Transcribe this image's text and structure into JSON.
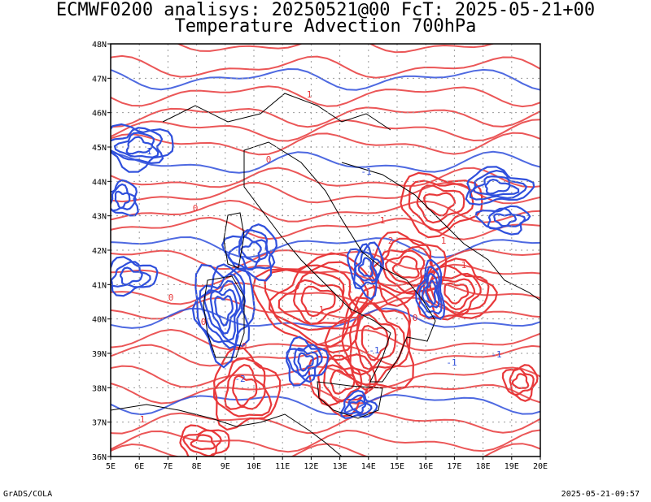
{
  "title_line1": "ECMWF0200 analisys: 20250521@00 FcT: 2025-05-21+00",
  "title_line2": "Temperature Advection 700hPa",
  "footer_left": "GrADS/COLA",
  "footer_right": "2025-05-21-09:57",
  "lat_labels": [
    "48N",
    "47N",
    "46N",
    "45N",
    "44N",
    "43N",
    "42N",
    "41N",
    "40N",
    "39N",
    "38N",
    "37N",
    "36N"
  ],
  "lon_labels": [
    "5E",
    "6E",
    "7E",
    "8E",
    "9E",
    "10E",
    "11E",
    "12E",
    "13E",
    "14E",
    "15E",
    "16E",
    "17E",
    "18E",
    "19E",
    "20E"
  ],
  "contour_labels": [
    "0",
    "1",
    "1",
    "-1",
    "0",
    "-1",
    "0",
    "1",
    "2",
    "-2",
    "1",
    "0",
    "-1",
    "1",
    "0",
    "1",
    "-1",
    "0",
    "1",
    "-1"
  ],
  "colors": {
    "warm": "#e8383a",
    "cold": "#2f4fdc",
    "border": "#000000",
    "grid": "#9a9a9a"
  }
}
